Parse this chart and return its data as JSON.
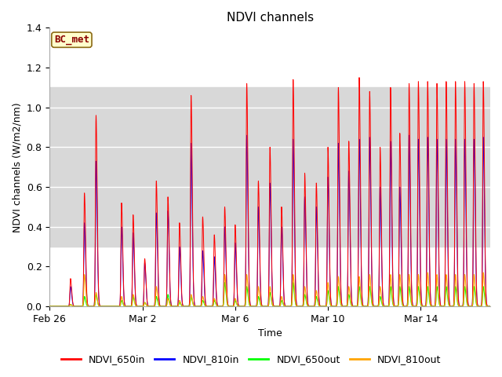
{
  "title": "NDVI channels",
  "xlabel": "Time",
  "ylabel": "NDVI channels (W/m2/nm)",
  "ylim": [
    0.0,
    1.4
  ],
  "yticks": [
    0.0,
    0.2,
    0.4,
    0.6,
    0.8,
    1.0,
    1.2,
    1.4
  ],
  "shaded_band": [
    0.3,
    1.1
  ],
  "xtick_labels": [
    "Feb 26",
    "Mar 2",
    "Mar 6",
    "Mar 10",
    "Mar 14"
  ],
  "bc_met_label": "BC_met",
  "legend_labels": [
    "NDVI_650in",
    "NDVI_810in",
    "NDVI_650out",
    "NDVI_810out"
  ],
  "line_colors": [
    "red",
    "blue",
    "lime",
    "orange"
  ],
  "title_fontsize": 11,
  "label_fontsize": 9,
  "tick_fontsize": 9,
  "legend_fontsize": 9,
  "total_days": 19.0,
  "xtick_positions": [
    0,
    4,
    8,
    12,
    16
  ],
  "peak_times": [
    0.9,
    1.5,
    2.0,
    3.1,
    3.6,
    4.1,
    4.6,
    5.1,
    5.6,
    6.1,
    6.6,
    7.1,
    7.55,
    8.0,
    8.5,
    9.0,
    9.5,
    10.0,
    10.5,
    11.0,
    11.5,
    12.0,
    12.45,
    12.9,
    13.35,
    13.8,
    14.25,
    14.7,
    15.1,
    15.5,
    15.9,
    16.3,
    16.7,
    17.1,
    17.5,
    17.9,
    18.3,
    18.7
  ],
  "peak_650in": [
    0.14,
    0.57,
    0.96,
    0.52,
    0.46,
    0.24,
    0.63,
    0.55,
    0.42,
    1.06,
    0.45,
    0.36,
    0.5,
    0.41,
    1.12,
    0.63,
    0.8,
    0.5,
    1.14,
    0.67,
    0.62,
    0.8,
    1.1,
    0.83,
    1.15,
    1.08,
    0.8,
    1.1,
    0.87,
    1.12,
    1.13,
    1.13,
    1.12,
    1.13,
    1.13,
    1.13,
    1.12,
    1.13
  ],
  "peak_810in": [
    0.1,
    0.42,
    0.73,
    0.4,
    0.37,
    0.22,
    0.47,
    0.48,
    0.3,
    0.82,
    0.28,
    0.25,
    0.4,
    0.32,
    0.86,
    0.5,
    0.62,
    0.4,
    0.84,
    0.55,
    0.5,
    0.65,
    0.82,
    0.68,
    0.84,
    0.85,
    0.6,
    0.83,
    0.6,
    0.86,
    0.84,
    0.85,
    0.84,
    0.84,
    0.84,
    0.84,
    0.84,
    0.85
  ],
  "peak_650out": [
    0.01,
    0.05,
    0.06,
    0.03,
    0.05,
    0.02,
    0.05,
    0.06,
    0.02,
    0.05,
    0.03,
    0.03,
    0.12,
    0.03,
    0.1,
    0.05,
    0.07,
    0.03,
    0.12,
    0.06,
    0.05,
    0.08,
    0.1,
    0.06,
    0.1,
    0.1,
    0.05,
    0.1,
    0.1,
    0.1,
    0.1,
    0.1,
    0.1,
    0.1,
    0.1,
    0.1,
    0.1,
    0.1
  ],
  "peak_810out": [
    0.01,
    0.16,
    0.07,
    0.05,
    0.06,
    0.02,
    0.1,
    0.04,
    0.03,
    0.06,
    0.05,
    0.04,
    0.16,
    0.04,
    0.16,
    0.1,
    0.1,
    0.05,
    0.16,
    0.1,
    0.08,
    0.12,
    0.15,
    0.1,
    0.15,
    0.16,
    0.1,
    0.16,
    0.16,
    0.16,
    0.16,
    0.17,
    0.16,
    0.16,
    0.16,
    0.16,
    0.16,
    0.17
  ]
}
